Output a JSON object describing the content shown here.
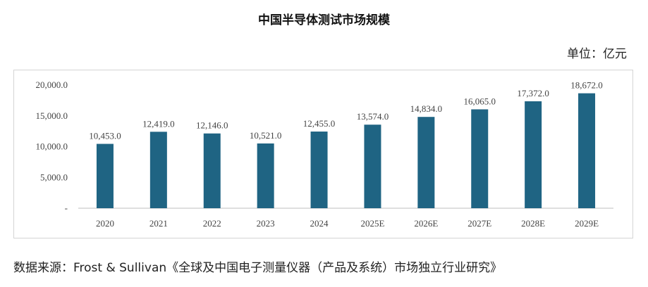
{
  "chart_data": {
    "type": "bar",
    "title": "中国半导体测试市场规模",
    "unit_label": "单位：亿元",
    "categories": [
      "2020",
      "2021",
      "2022",
      "2023",
      "2024",
      "2025E",
      "2026E",
      "2027E",
      "2028E",
      "2029E"
    ],
    "values": [
      10453.0,
      12419.0,
      12146.0,
      10521.0,
      12455.0,
      13574.0,
      14834.0,
      16065.0,
      17372.0,
      18672.0
    ],
    "value_labels": [
      "10,453.0",
      "12,419.0",
      "12,146.0",
      "10,521.0",
      "12,455.0",
      "13,574.0",
      "14,834.0",
      "16,065.0",
      "17,372.0",
      "18,672.0"
    ],
    "y_ticks": [
      {
        "value": 0,
        "label": "-"
      },
      {
        "value": 5000,
        "label": "5,000.0"
      },
      {
        "value": 10000,
        "label": "10,000.0"
      },
      {
        "value": 15000,
        "label": "15,000.0"
      },
      {
        "value": 20000,
        "label": "20,000.0"
      }
    ],
    "ylim": [
      0,
      20000
    ],
    "grid": false,
    "legend": "none",
    "bar_color": "#1f6483",
    "xlabel": "",
    "ylabel": ""
  },
  "source": "数据来源：Frost & Sullivan《全球及中国电子测量仪器（产品及系统）市场独立行业研究》"
}
